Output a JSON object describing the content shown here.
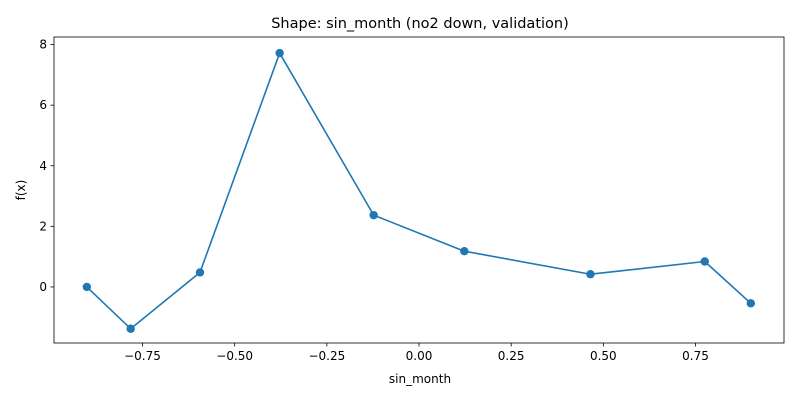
{
  "chart_data": {
    "type": "line",
    "title": "Shape: sin_month (no2 down, validation)",
    "xlabel": "sin_month",
    "ylabel": "f(x)",
    "xlim": [
      -0.99,
      0.99
    ],
    "ylim": [
      -1.85,
      8.25
    ],
    "xticks": [
      -0.75,
      -0.5,
      -0.25,
      0.0,
      0.25,
      0.5,
      0.75
    ],
    "xtick_labels": [
      "−0.75",
      "−0.50",
      "−0.25",
      "0.00",
      "0.25",
      "0.50",
      "0.75"
    ],
    "yticks": [
      0,
      2,
      4,
      6,
      8
    ],
    "ytick_labels": [
      "0",
      "2",
      "4",
      "6",
      "8"
    ],
    "grid": false,
    "series": [
      {
        "color": "#1f77b4",
        "marker": "circle",
        "x": [
          -0.901,
          -0.782,
          -0.594,
          -0.378,
          -0.123,
          0.123,
          0.465,
          0.775,
          0.9
        ],
        "y": [
          0.0,
          -1.38,
          0.48,
          7.72,
          2.37,
          1.18,
          0.42,
          0.84,
          -0.54
        ]
      }
    ]
  }
}
